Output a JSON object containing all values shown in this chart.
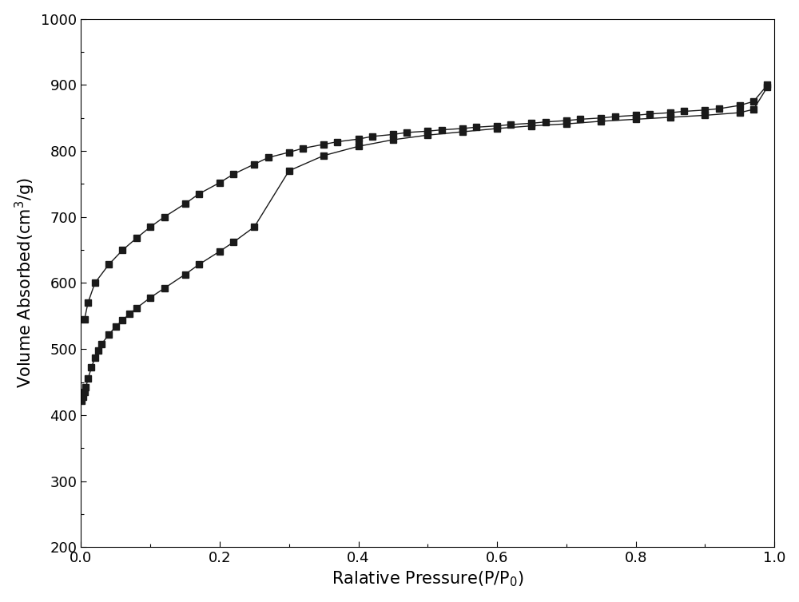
{
  "adsorption_x": [
    0.001,
    0.003,
    0.005,
    0.007,
    0.01,
    0.015,
    0.02,
    0.025,
    0.03,
    0.04,
    0.05,
    0.06,
    0.07,
    0.08,
    0.1,
    0.12,
    0.15,
    0.17,
    0.2,
    0.22,
    0.25,
    0.3,
    0.35,
    0.4,
    0.45,
    0.5,
    0.55,
    0.6,
    0.65,
    0.7,
    0.75,
    0.8,
    0.85,
    0.9,
    0.95,
    0.97,
    0.99
  ],
  "adsorption_y": [
    422,
    428,
    435,
    442,
    455,
    472,
    487,
    498,
    508,
    522,
    534,
    544,
    553,
    562,
    578,
    592,
    613,
    628,
    648,
    662,
    685,
    770,
    793,
    807,
    817,
    824,
    829,
    834,
    838,
    841,
    845,
    848,
    851,
    854,
    858,
    863,
    897
  ],
  "desorption_x": [
    0.99,
    0.97,
    0.95,
    0.92,
    0.9,
    0.87,
    0.85,
    0.82,
    0.8,
    0.77,
    0.75,
    0.72,
    0.7,
    0.67,
    0.65,
    0.62,
    0.6,
    0.57,
    0.55,
    0.52,
    0.5,
    0.47,
    0.45,
    0.42,
    0.4,
    0.37,
    0.35,
    0.32,
    0.3,
    0.27,
    0.25,
    0.22,
    0.2,
    0.17,
    0.15,
    0.12,
    0.1,
    0.08,
    0.06,
    0.04,
    0.02,
    0.01,
    0.005
  ],
  "desorption_y": [
    900,
    875,
    869,
    864,
    862,
    860,
    858,
    856,
    854,
    852,
    850,
    848,
    846,
    844,
    842,
    840,
    838,
    836,
    834,
    832,
    830,
    828,
    825,
    822,
    818,
    814,
    810,
    804,
    798,
    790,
    780,
    765,
    752,
    735,
    720,
    700,
    685,
    668,
    650,
    628,
    600,
    570,
    545
  ],
  "xlabel": "Ralative Pressure(P/P$_0$)",
  "ylabel": "Volume Absorbed(cm$^3$/g)",
  "xlim": [
    0.0,
    1.0
  ],
  "ylim": [
    200,
    1000
  ],
  "yticks": [
    200,
    300,
    400,
    500,
    600,
    700,
    800,
    900,
    1000
  ],
  "xticks": [
    0.0,
    0.2,
    0.4,
    0.6,
    0.8,
    1.0
  ],
  "line_color": "#1a1a1a",
  "marker": "s",
  "markersize": 6,
  "linewidth": 1.0,
  "background_color": "#ffffff",
  "xlabel_fontsize": 15,
  "ylabel_fontsize": 15,
  "tick_fontsize": 13
}
